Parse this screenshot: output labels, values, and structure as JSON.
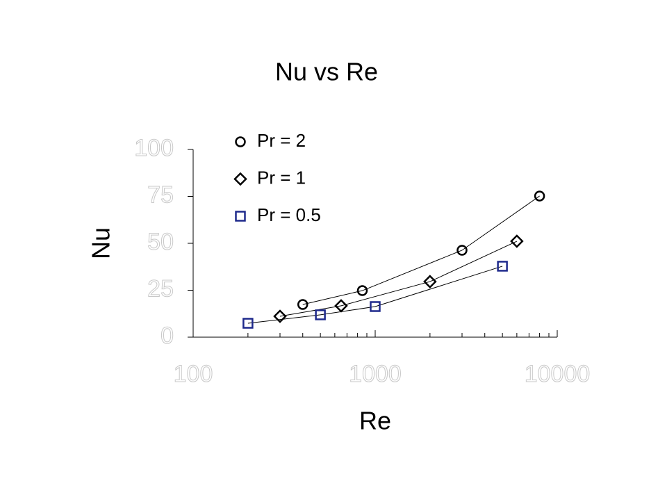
{
  "chart_data": {
    "type": "scatter",
    "title": "Nu vs Re",
    "xlabel": "Re",
    "ylabel": "Nu",
    "xscale": "log",
    "xlim": [
      100,
      10000
    ],
    "xticks": [
      100,
      1000,
      10000
    ],
    "xminorticks": [
      200,
      300,
      400,
      500,
      600,
      700,
      800,
      900,
      2000,
      3000,
      4000,
      5000,
      6000,
      7000,
      8000,
      9000
    ],
    "ylim": [
      0,
      100
    ],
    "yticks": [
      0,
      25,
      50,
      75,
      100
    ],
    "legend": "upper left",
    "series": [
      {
        "name": "Pr = 2",
        "marker": "circle",
        "color": "#000000",
        "x": [
          400,
          850,
          3000,
          8000
        ],
        "values": [
          17.4,
          24.8,
          46.3,
          75.2
        ]
      },
      {
        "name": "Pr = 1",
        "marker": "diamond",
        "color": "#000000",
        "x": [
          300,
          650,
          2000,
          6000
        ],
        "values": [
          11.1,
          16.7,
          29.6,
          51.1
        ]
      },
      {
        "name": "Pr = 0.5",
        "marker": "square",
        "color": "#1f2a8c",
        "x": [
          200,
          500,
          1000,
          5000
        ],
        "values": [
          7.4,
          11.9,
          16.3,
          37.8
        ]
      }
    ]
  }
}
